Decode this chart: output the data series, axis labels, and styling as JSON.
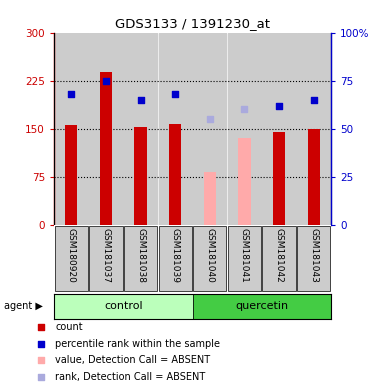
{
  "title": "GDS3133 / 1391230_at",
  "samples": [
    "GSM180920",
    "GSM181037",
    "GSM181038",
    "GSM181039",
    "GSM181040",
    "GSM181041",
    "GSM181042",
    "GSM181043"
  ],
  "red_bars": [
    155,
    238,
    152,
    158,
    0,
    0,
    145,
    150
  ],
  "pink_bars": [
    0,
    0,
    0,
    0,
    82,
    135,
    0,
    0
  ],
  "blue_squares": [
    68,
    75,
    65,
    68,
    -1,
    -1,
    62,
    65
  ],
  "purple_squares": [
    -1,
    -1,
    -1,
    -1,
    55,
    60,
    -1,
    -1
  ],
  "ylim_left": [
    0,
    300
  ],
  "ylim_right": [
    0,
    100
  ],
  "yticks_left": [
    0,
    75,
    150,
    225,
    300
  ],
  "ytick_labels_right": [
    "0",
    "25",
    "50",
    "75",
    "100%"
  ],
  "red_color": "#cc0000",
  "pink_color": "#ffaaaa",
  "blue_color": "#0000cc",
  "purple_color": "#aaaadd",
  "control_bg_light": "#bbffbb",
  "quercetin_bg_dark": "#44cc44",
  "sample_bg": "#cccccc",
  "bar_width": 0.35,
  "hgrid_values": [
    75,
    150,
    225
  ],
  "legend_items": [
    {
      "color": "#cc0000",
      "label": "count"
    },
    {
      "color": "#0000cc",
      "label": "percentile rank within the sample"
    },
    {
      "color": "#ffaaaa",
      "label": "value, Detection Call = ABSENT"
    },
    {
      "color": "#aaaadd",
      "label": "rank, Detection Call = ABSENT"
    }
  ]
}
